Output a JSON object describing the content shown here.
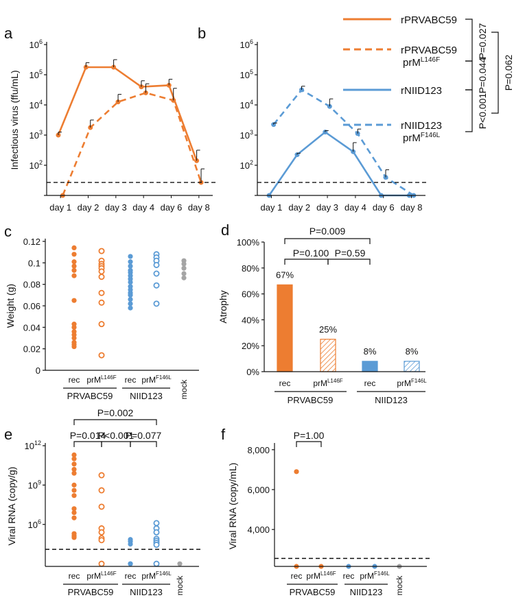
{
  "colors": {
    "orange": "#ED7D31",
    "blue": "#5B9BD5",
    "grey": "#A5A5A5",
    "black": "#111111"
  },
  "legend": {
    "entries": [
      {
        "line1": "rPRVABC59",
        "line2": "",
        "sup": "",
        "color": "#ED7D31",
        "dashed": false
      },
      {
        "line1": "rPRVABC59",
        "line2": "prM",
        "sup": "L146F",
        "color": "#ED7D31",
        "dashed": true
      },
      {
        "line1": "rNIID123",
        "line2": "",
        "sup": "",
        "color": "#5B9BD5",
        "dashed": false
      },
      {
        "line1": "rNIID123",
        "line2": "prM",
        "sup": "F146L",
        "color": "#5B9BD5",
        "dashed": true
      }
    ],
    "pvalues": [
      "P=0.027",
      "P=0.044",
      "P<0.001",
      "P=0.062"
    ]
  },
  "chart_data": [
    {
      "panel": "a",
      "type": "line",
      "ylabel": "Infectious virus (ffu/mL)",
      "yscale": "log",
      "yticks": [
        "10^2",
        "10^3",
        "10^4",
        "10^5",
        "10^6"
      ],
      "ylim": [
        1,
        6
      ],
      "xticks": [
        "day 1",
        "day 2",
        "day 3",
        "day 4",
        "day 6",
        "day 8"
      ],
      "detection_limit_log": 1.43,
      "series": [
        {
          "name": "rPRVABC59",
          "color": "#ED7D31",
          "dashed": false,
          "offset": -0.08,
          "values_log": [
            3.0,
            5.25,
            5.25,
            4.6,
            4.65,
            2.15
          ],
          "err_log": [
            0.1,
            0.15,
            0.25,
            0.2,
            0.2,
            0.35
          ]
        },
        {
          "name": "rPRVABC59 prML146F",
          "color": "#ED7D31",
          "dashed": true,
          "offset": 0.08,
          "values_log": [
            1.0,
            3.25,
            4.1,
            4.4,
            4.15,
            1.43
          ],
          "err_log": [
            0,
            0.25,
            0.25,
            0.3,
            0.4,
            0.45
          ]
        }
      ]
    },
    {
      "panel": "b",
      "type": "line",
      "yscale": "log",
      "yticks": [
        "10^2",
        "10^3",
        "10^4",
        "10^5",
        "10^6"
      ],
      "ylim": [
        1,
        6
      ],
      "xticks": [
        "day 1",
        "day 2",
        "day 3",
        "day 4",
        "day 6",
        "day 8"
      ],
      "detection_limit_log": 1.43,
      "series": [
        {
          "name": "rNIID123",
          "color": "#5B9BD5",
          "dashed": false,
          "offset": -0.08,
          "values_log": [
            1.0,
            2.35,
            3.1,
            2.45,
            1.0,
            1.0
          ],
          "err_log": [
            0,
            0.05,
            0.05,
            0.3,
            0,
            0
          ]
        },
        {
          "name": "rNIID123 prMF146L",
          "color": "#5B9BD5",
          "dashed": true,
          "offset": 0.08,
          "values_log": [
            3.35,
            4.5,
            3.95,
            3.05,
            1.6,
            1.0
          ],
          "err_log": [
            0.05,
            0.12,
            0.25,
            0.15,
            0.25,
            0
          ]
        }
      ]
    },
    {
      "panel": "c",
      "type": "scatter",
      "ylabel": "Weight (g)",
      "yticks": [
        "0",
        "0.02",
        "0.04",
        "0.06",
        "0.08",
        "0.1",
        "0.12"
      ],
      "ylim": [
        0,
        0.12
      ],
      "groups": [
        {
          "label": "rec",
          "sup": "",
          "color": "#ED7D31",
          "filled": true,
          "values": [
            0.114,
            0.108,
            0.101,
            0.097,
            0.093,
            0.088,
            0.065,
            0.043,
            0.04,
            0.036,
            0.033,
            0.03,
            0.026,
            0.024,
            0.022
          ]
        },
        {
          "label": "prM",
          "sup": "L146F",
          "color": "#ED7D31",
          "filled": false,
          "values": [
            0.111,
            0.102,
            0.099,
            0.097,
            0.095,
            0.092,
            0.087,
            0.072,
            0.063,
            0.043,
            0.014
          ]
        },
        {
          "label": "rec",
          "sup": "",
          "color": "#5B9BD5",
          "filled": true,
          "values": [
            0.106,
            0.101,
            0.097,
            0.093,
            0.091,
            0.088,
            0.085,
            0.082,
            0.078,
            0.075,
            0.072,
            0.07,
            0.066,
            0.062,
            0.058
          ]
        },
        {
          "label": "prM",
          "sup": "F146L",
          "color": "#5B9BD5",
          "filled": false,
          "values": [
            0.108,
            0.105,
            0.102,
            0.098,
            0.09,
            0.079,
            0.062
          ]
        },
        {
          "label": "mock",
          "sup": "",
          "color": "#A5A5A5",
          "filled": true,
          "values": [
            0.102,
            0.099,
            0.095,
            0.09,
            0.086
          ]
        }
      ],
      "group_labels": [
        "PRVABC59",
        "NIID123"
      ]
    },
    {
      "panel": "d",
      "type": "bar",
      "ylabel": "Atrophy",
      "yticks": [
        "0%",
        "20%",
        "40%",
        "60%",
        "80%",
        "100%"
      ],
      "ylim": [
        0,
        100
      ],
      "categories": [
        "rec",
        "prML146F",
        "rec",
        "prMF146L"
      ],
      "values": [
        67,
        25,
        8,
        8
      ],
      "data_labels": [
        "67%",
        "25%",
        "8%",
        "8%"
      ],
      "pvalues": [
        "P=0.009",
        "P=0.100",
        "P=0.59"
      ],
      "group_labels": [
        "PRVABC59",
        "NIID123"
      ]
    },
    {
      "panel": "e",
      "type": "scatter",
      "ylabel": "Viral RNA (copy/g)",
      "yscale": "log",
      "yticks": [
        "10^6",
        "10^9",
        "10^12"
      ],
      "ylim": [
        2.8,
        12
      ],
      "detection_limit_log": 4.1,
      "groups": [
        {
          "label": "rec",
          "color": "#ED7D31",
          "filled": true,
          "values_log": [
            11.3,
            11.0,
            10.6,
            10.2,
            9.9,
            9.0,
            8.6,
            8.2,
            7.2,
            6.9,
            6.5,
            5.3,
            5.15,
            5.1,
            5.0
          ]
        },
        {
          "label": "prM",
          "sup": "L146F",
          "color": "#ED7D31",
          "filled": false,
          "values_log": [
            9.75,
            8.6,
            7.35,
            5.7,
            5.4,
            4.95,
            4.8,
            3.0
          ]
        },
        {
          "label": "rec",
          "color": "#5B9BD5",
          "filled": true,
          "values_log": [
            4.85,
            4.7,
            4.5,
            3.0,
            3.0
          ]
        },
        {
          "label": "prM",
          "sup": "F146L",
          "color": "#5B9BD5",
          "filled": false,
          "values_log": [
            6.1,
            5.7,
            5.4,
            4.9,
            4.75,
            4.6,
            4.45,
            3.0
          ]
        },
        {
          "label": "mock",
          "color": "#A5A5A5",
          "filled": true,
          "values_log": [
            3.0
          ]
        }
      ],
      "pvalues": [
        "P=0.002",
        "P=0.014",
        "P<0.001",
        "P=0.077"
      ],
      "group_labels": [
        "PRVABC59",
        "NIID123"
      ]
    },
    {
      "panel": "f",
      "type": "scatter",
      "ylabel": "Viral RNA (copy/mL)",
      "yticks": [
        "4,000",
        "6,000",
        "8,000"
      ],
      "ylim": [
        2150,
        8200
      ],
      "detection_limit": 2550,
      "groups": [
        {
          "label": "rec",
          "color": "#ED7D31",
          "filled": true,
          "values": [
            6900,
            2150
          ]
        },
        {
          "label": "prM",
          "sup": "L146F",
          "color": "#ED7D31",
          "filled": true,
          "values": [
            2150
          ]
        },
        {
          "label": "rec",
          "color": "#5B9BD5",
          "filled": true,
          "values": [
            2150
          ]
        },
        {
          "label": "prM",
          "sup": "F146L",
          "color": "#5B9BD5",
          "filled": true,
          "values": [
            2150
          ]
        },
        {
          "label": "mock",
          "color": "#A5A5A5",
          "filled": true,
          "values": [
            2150
          ]
        }
      ],
      "pvalues": [
        "P=1.00"
      ],
      "group_labels": [
        "PRVABC59",
        "NIID123"
      ]
    }
  ]
}
